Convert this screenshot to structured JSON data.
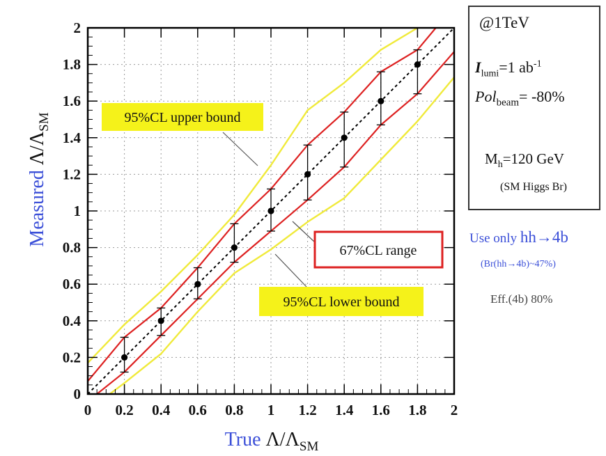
{
  "chart_data": {
    "type": "line",
    "xlabel": {
      "main": "True ",
      "symbol": "Λ/Λ",
      "sub": "SM"
    },
    "ylabel": {
      "main": "Measured ",
      "symbol": "Λ/Λ",
      "sub": "SM"
    },
    "xlim": [
      0,
      2
    ],
    "ylim": [
      0,
      2
    ],
    "xticks": [
      "0",
      "0.2",
      "0.4",
      "0.6",
      "0.8",
      "1",
      "1.2",
      "1.4",
      "1.6",
      "1.8",
      "2"
    ],
    "yticks": [
      "0",
      "0.2",
      "0.4",
      "0.6",
      "0.8",
      "1",
      "1.2",
      "1.4",
      "1.6",
      "1.8",
      "2"
    ],
    "grid": true,
    "diagonal": [
      [
        0,
        0
      ],
      [
        2,
        2
      ]
    ],
    "points": {
      "x": [
        0.2,
        0.4,
        0.6,
        0.8,
        1.0,
        1.2,
        1.4,
        1.6,
        1.8
      ],
      "y": [
        0.2,
        0.4,
        0.6,
        0.8,
        1.0,
        1.2,
        1.4,
        1.6,
        1.8
      ]
    },
    "series": [
      {
        "name": "95%CL upper bound",
        "color": "#f0ea3a",
        "x": [
          0,
          0.2,
          0.4,
          0.6,
          0.8,
          1.0,
          1.2,
          1.4,
          1.6,
          1.8,
          1.9
        ],
        "y": [
          0.17,
          0.38,
          0.56,
          0.76,
          0.98,
          1.25,
          1.55,
          1.7,
          1.88,
          2.0,
          2.05
        ]
      },
      {
        "name": "67%CL upper",
        "color": "#dd2020",
        "x": [
          0,
          0.2,
          0.4,
          0.6,
          0.8,
          1.0,
          1.2,
          1.4,
          1.6,
          1.8,
          1.9
        ],
        "y": [
          0.07,
          0.31,
          0.47,
          0.69,
          0.93,
          1.12,
          1.36,
          1.54,
          1.76,
          1.88,
          2.0
        ]
      },
      {
        "name": "67%CL lower",
        "color": "#dd2020",
        "x": [
          0.05,
          0.2,
          0.4,
          0.6,
          0.8,
          1.0,
          1.2,
          1.4,
          1.6,
          1.8,
          2.0
        ],
        "y": [
          0.0,
          0.12,
          0.32,
          0.52,
          0.72,
          0.89,
          1.06,
          1.24,
          1.47,
          1.64,
          1.87
        ]
      },
      {
        "name": "95%CL lower bound",
        "color": "#f0ea3a",
        "x": [
          0.12,
          0.2,
          0.4,
          0.6,
          0.8,
          1.0,
          1.2,
          1.4,
          1.6,
          1.8,
          2.0
        ],
        "y": [
          0.0,
          0.06,
          0.22,
          0.45,
          0.66,
          0.79,
          0.94,
          1.07,
          1.28,
          1.49,
          1.73
        ]
      }
    ],
    "annotations": [
      {
        "text": "95%CL upper bound",
        "style": "yellow"
      },
      {
        "text": "67%CL range",
        "style": "red-box"
      },
      {
        "text": "95%CL lower bound",
        "style": "yellow"
      }
    ]
  },
  "info_box": {
    "energy": "@1TeV",
    "lumi": {
      "sym": "I",
      "sub": "lumi",
      "val": "=1 ab",
      "sup": "-1"
    },
    "pol": {
      "sym": "Pol",
      "sub": "beam",
      "val": "= -80%"
    },
    "mass": {
      "sym": "M",
      "sub": "h",
      "val": "=120 GeV"
    },
    "higgs": "(SM Higgs Br)"
  },
  "notes": {
    "use_only": "Use only ",
    "channel": "hh→4b",
    "branching": "(Br(hh→4b)~47%)",
    "efficiency": "Eff.(4b) 80%"
  },
  "colors": {
    "accent_blue": "#3b4fd8",
    "red": "#dd2020",
    "yellow": "#f0ea3a",
    "label_yellow": "#f5f21a"
  }
}
